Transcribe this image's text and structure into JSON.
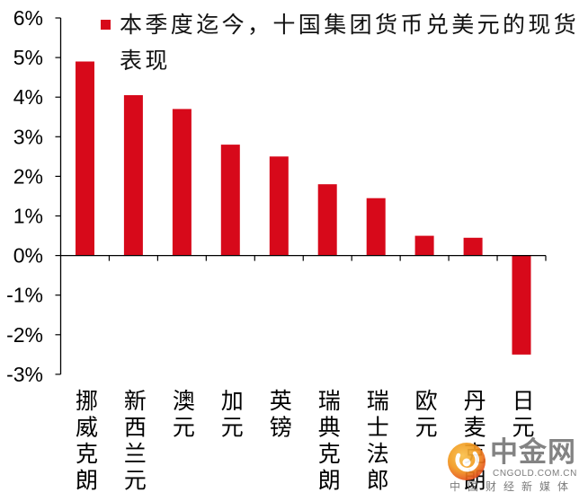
{
  "chart_data": {
    "type": "bar",
    "categories": [
      "挪威克朗",
      "新西兰元",
      "澳元",
      "加元",
      "英镑",
      "瑞典克朗",
      "瑞士法郎",
      "欧元",
      "丹麦克朗",
      "日元"
    ],
    "series": [
      {
        "name": "本季度迄今，十国集团货币兑美元的现货表现",
        "color": "#d7091a",
        "values": [
          4.9,
          4.05,
          3.7,
          2.8,
          2.5,
          1.8,
          1.45,
          0.5,
          0.45,
          -2.5
        ]
      }
    ],
    "ylim": [
      -3,
      6
    ],
    "y_ticks": [
      6,
      5,
      4,
      3,
      2,
      1,
      0,
      -1,
      -2,
      -3
    ],
    "y_tick_labels": [
      "6%",
      "5%",
      "4%",
      "3%",
      "2%",
      "1%",
      "0%",
      "-1%",
      "-2%",
      "-3%"
    ],
    "legend_position": "top",
    "grid": false
  },
  "watermark": {
    "brand": "中金网",
    "domain": "CNGOLD.COM.CN",
    "tagline": "中国财经新媒体"
  },
  "colors": {
    "axis": "#000000",
    "logo_light": "#f9c04a",
    "logo_orange": "#f29a1f",
    "logo_red": "#e4471d"
  }
}
